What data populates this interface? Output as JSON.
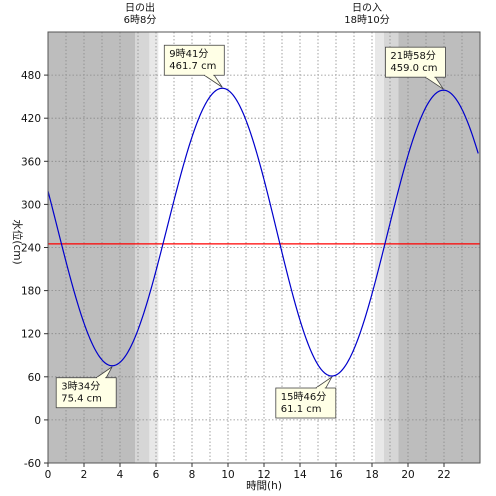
{
  "chart_data": {
    "type": "line",
    "xlabel": "時間(h)",
    "ylabel": "水位(cm)",
    "xlim": [
      0,
      24
    ],
    "ylim": [
      -60,
      540
    ],
    "xticks": [
      0,
      2,
      4,
      6,
      8,
      10,
      12,
      14,
      16,
      18,
      20,
      22
    ],
    "xtick_labels": [
      "0",
      "2",
      "4",
      "6",
      "8",
      "10",
      "12",
      "14",
      "16",
      "18",
      "20",
      "22"
    ],
    "yticks": [
      -60,
      0,
      60,
      120,
      180,
      240,
      300,
      360,
      420,
      480
    ],
    "ytick_labels": [
      "-60",
      "0",
      "60",
      "120",
      "180",
      "240",
      "300",
      "360",
      "420",
      "480"
    ],
    "grid": true,
    "mean_level": 245,
    "colors": {
      "tide_line": "#0000cc",
      "mean_line": "#ff0000",
      "night": "#bdbdbd",
      "twilight": "#d6d6d6",
      "dawn": "#e8e8e8",
      "callout_bg": "#ffffe6"
    },
    "sunrise": {
      "title": "日の出",
      "time_label": "6時8分",
      "hour": 6.133
    },
    "sunset": {
      "title": "日の入",
      "time_label": "18時10分",
      "hour": 18.167
    },
    "extremes": [
      {
        "kind": "low",
        "hour": 3.567,
        "value": 75.4,
        "time_label": "3時34分",
        "value_label": "75.4 cm"
      },
      {
        "kind": "high",
        "hour": 9.683,
        "value": 461.7,
        "time_label": "9時41分",
        "value_label": "461.7 cm"
      },
      {
        "kind": "low",
        "hour": 15.767,
        "value": 61.1,
        "time_label": "15時46分",
        "value_label": "61.1 cm"
      },
      {
        "kind": "high",
        "hour": 21.967,
        "value": 459.0,
        "time_label": "21時58分",
        "value_label": "459.0 cm"
      }
    ],
    "series": [
      {
        "x": [
          0,
          23.9
        ],
        "y": [
          312,
          356
        ]
      }
    ]
  }
}
